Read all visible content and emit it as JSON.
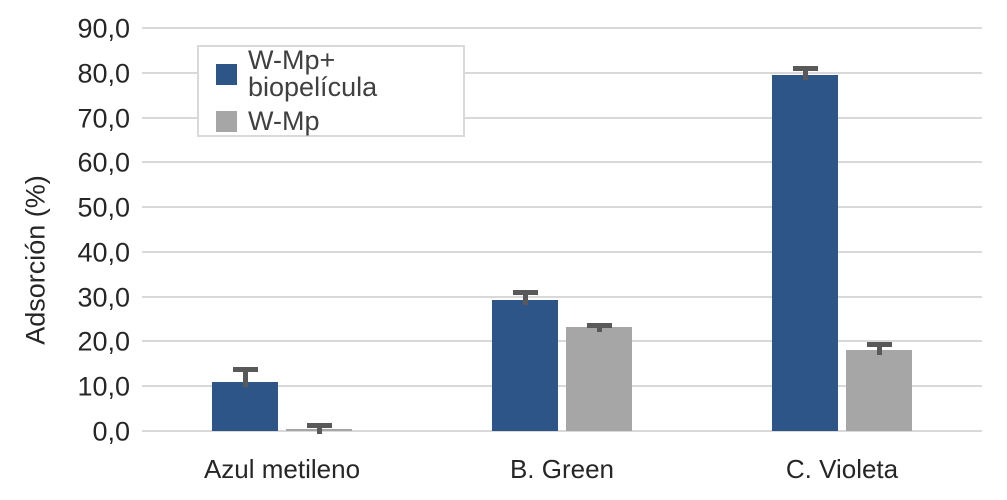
{
  "chart_data": {
    "type": "bar",
    "title": "",
    "xlabel": "",
    "ylabel": "Adsorción (%)",
    "categories": [
      "Azul metileno",
      "B. Green",
      "C. Violeta"
    ],
    "series": [
      {
        "name": "W-Mp+ biopelícula",
        "color": "#2D5587",
        "values": [
          11.0,
          29.2,
          79.6
        ],
        "errors": [
          3.3,
          2.4,
          2.0
        ]
      },
      {
        "name": "W-Mp",
        "color": "#A6A6A6",
        "values": [
          0.5,
          23.2,
          18.1
        ],
        "errors": [
          1.2,
          0.9,
          1.8
        ]
      }
    ],
    "ylim": [
      0,
      90
    ],
    "ytick_step": 10,
    "ytick_labels": [
      "0,0",
      "10,0",
      "20,0",
      "30,0",
      "40,0",
      "50,0",
      "60,0",
      "70,0",
      "80,0",
      "90,0"
    ],
    "grid": true,
    "gridline_color": "#D9D9D9",
    "error_bar_color": "#595959",
    "legend_position": "top-left-inset"
  }
}
